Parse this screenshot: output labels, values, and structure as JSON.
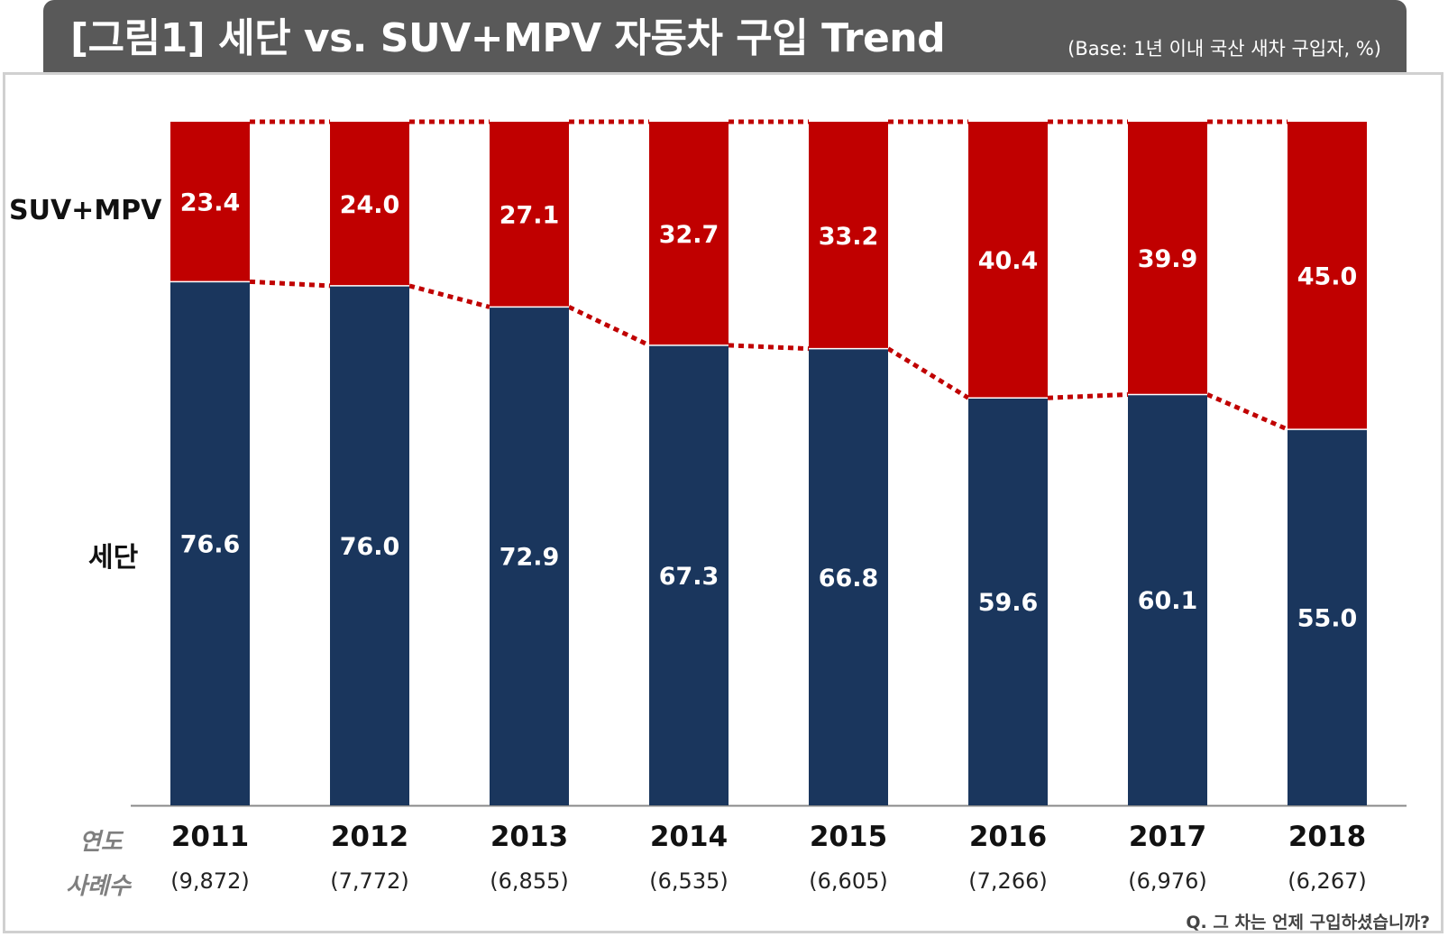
{
  "header": {
    "title": "[그림1] 세단 vs. SUV+MPV 자동차 구입 Trend",
    "base_note": "(Base: 1년 이내 국산 새차 구입자, %)"
  },
  "row_labels": {
    "year": "연도",
    "cases": "사례수"
  },
  "footnote": "Q. 그 차는 언제 구입하셨습니까?",
  "colors": {
    "sedan": "#1a365d",
    "suv_mpv": "#c00000",
    "connector": "#c00000",
    "header_bg": "#595959"
  },
  "chart_data": {
    "type": "bar",
    "stacked": true,
    "percent_stacked": true,
    "title": "",
    "xlabel": "",
    "ylabel": "",
    "ylim": [
      0,
      100
    ],
    "grid": false,
    "categories": [
      "2011",
      "2012",
      "2013",
      "2014",
      "2015",
      "2016",
      "2017",
      "2018"
    ],
    "sample_sizes": [
      "(9,872)",
      "(7,772)",
      "(6,855)",
      "(6,535)",
      "(6,605)",
      "(7,266)",
      "(6,976)",
      "(6,267)"
    ],
    "series": [
      {
        "name": "세단",
        "values": [
          76.6,
          76.0,
          72.9,
          67.3,
          66.8,
          59.6,
          60.1,
          55.0
        ],
        "value_labels": [
          "76.6",
          "76.0",
          "72.9",
          "67.3",
          "66.8",
          "59.6",
          "60.1",
          "55.0"
        ]
      },
      {
        "name": "SUV+MPV",
        "values": [
          23.4,
          24.0,
          27.1,
          32.7,
          33.2,
          40.4,
          39.9,
          45.0
        ],
        "value_labels": [
          "23.4",
          "24.0",
          "27.1",
          "32.7",
          "33.2",
          "40.4",
          "39.9",
          "45.0"
        ]
      }
    ],
    "series_connectors": "dotted"
  }
}
